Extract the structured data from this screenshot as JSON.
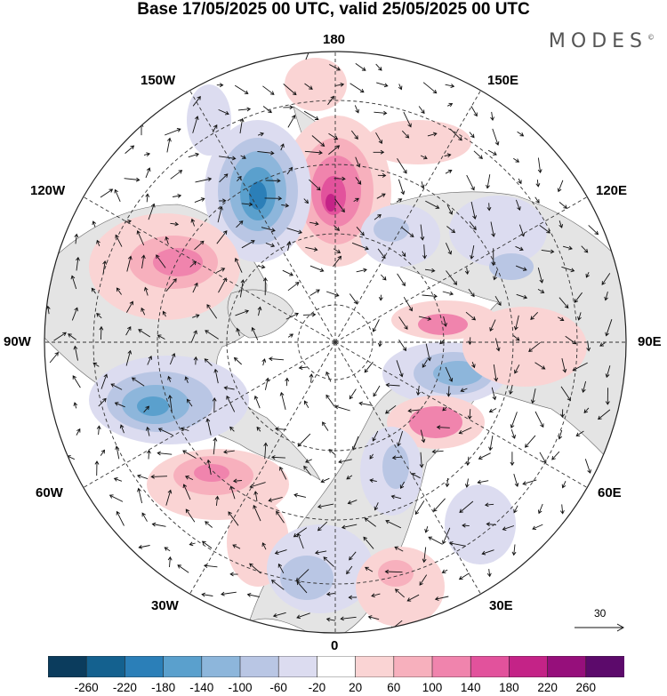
{
  "title": "Base 17/05/2025 00 UTC, valid 25/05/2025 00 UTC",
  "brand": "MODES",
  "brand_mark": "©",
  "map": {
    "projection": "north polar stereographic",
    "longitude_labels": {
      "top": "180",
      "top_left": "150W",
      "top_right": "150E",
      "upper_left": "120W",
      "upper_right": "120E",
      "left": "90W",
      "right": "90E",
      "lower_left": "60W",
      "lower_right": "60E",
      "bottom_left": "30W",
      "bottom_right": "30E",
      "bottom": "0"
    },
    "wind_reference_vector": "30"
  },
  "colorbar": {
    "colors": [
      "#0b3c5d",
      "#14618f",
      "#2b7fb8",
      "#5aa0cd",
      "#8db6db",
      "#b9c6e4",
      "#dcdcf0",
      "#ffffff",
      "#fad4d4",
      "#f7b0bd",
      "#f084ad",
      "#e2529c",
      "#c42387",
      "#960f7b",
      "#5c0a6b"
    ],
    "ticks": [
      "-260",
      "-220",
      "-180",
      "-140",
      "-100",
      "-60",
      "-20",
      "20",
      "60",
      "100",
      "140",
      "180",
      "220",
      "260"
    ]
  },
  "colors": {
    "land_gray": "#e4e4e4",
    "neg_light": "#dcdcf0",
    "neg_mid": "#8db6db",
    "neg_dark": "#2b7fb8",
    "pos_light": "#fad4d4",
    "pos_mid": "#f084ad",
    "pos_dark": "#c42387"
  }
}
